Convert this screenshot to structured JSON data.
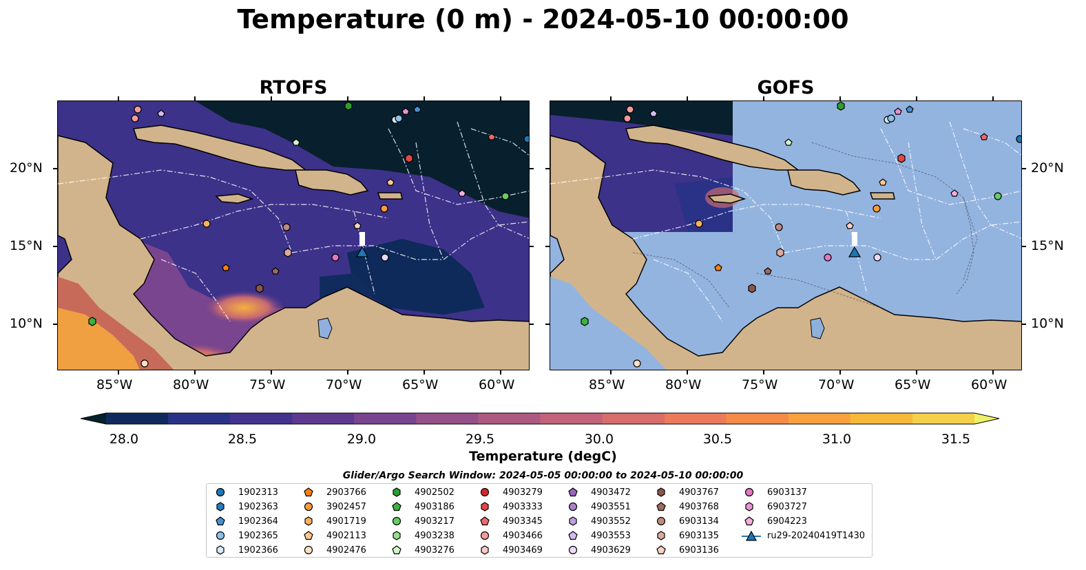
{
  "title": "Temperature (0 m) - 2024-05-10 00:00:00",
  "panels": [
    {
      "title": "RTOFS"
    },
    {
      "title": "GOFS"
    }
  ],
  "axes": {
    "lon_ticks": [
      "85°W",
      "80°W",
      "75°W",
      "70°W",
      "65°W",
      "60°W"
    ],
    "lat_ticks": [
      "20°N",
      "15°N",
      "10°N"
    ]
  },
  "map_colors": {
    "land": "#d2b48c",
    "ocean_gofs": "#94b4e0",
    "deep_cold": "#08202e",
    "mid": "#3b2f8a",
    "warm": "#a05a88",
    "hot": "#f0a040",
    "lake": "#8fb0dd",
    "boundary": "#ffffff"
  },
  "colorbar": {
    "ticks": [
      "28.0",
      "28.5",
      "29.0",
      "29.5",
      "30.0",
      "30.5",
      "31.0",
      "31.5"
    ],
    "label": "Temperature (degC)",
    "colors": [
      "#07202d",
      "#0f2b5e",
      "#2a3287",
      "#43338f",
      "#5d3a8f",
      "#7a458f",
      "#955089",
      "#ad5a83",
      "#c3627b",
      "#d86e6c",
      "#eb7b5b",
      "#f48c48",
      "#f8a13e",
      "#f7b93a",
      "#f4d14b",
      "#eef067"
    ]
  },
  "search_window": "Glider/Argo Search Window: 2024-05-05 00:00:00 to 2024-05-10 00:00:00",
  "legend": [
    {
      "label": "1902313",
      "marker": "circle",
      "color": "#1f77b4"
    },
    {
      "label": "1902363",
      "marker": "hexagon",
      "color": "#2a7cba"
    },
    {
      "label": "1902364",
      "marker": "pentagon",
      "color": "#4a90d0"
    },
    {
      "label": "1902365",
      "marker": "circle",
      "color": "#8ec0ea"
    },
    {
      "label": "1902366",
      "marker": "hexagon",
      "color": "#d6ecfb"
    },
    {
      "label": "2903766",
      "marker": "pentagon",
      "color": "#ff7f0e"
    },
    {
      "label": "3902457",
      "marker": "circle",
      "color": "#ff9a3c"
    },
    {
      "label": "4901719",
      "marker": "hexagon",
      "color": "#ffb060"
    },
    {
      "label": "4902113",
      "marker": "pentagon",
      "color": "#ffc88e"
    },
    {
      "label": "4902476",
      "marker": "circle",
      "color": "#ffe2c2"
    },
    {
      "label": "4902502",
      "marker": "hexagon",
      "color": "#2ca02c"
    },
    {
      "label": "4903186",
      "marker": "pentagon",
      "color": "#3cb43c"
    },
    {
      "label": "4903217",
      "marker": "circle",
      "color": "#66cc66"
    },
    {
      "label": "4903238",
      "marker": "hexagon",
      "color": "#98df8a"
    },
    {
      "label": "4903276",
      "marker": "pentagon",
      "color": "#d2f5c8"
    },
    {
      "label": "4903279",
      "marker": "circle",
      "color": "#d62728"
    },
    {
      "label": "4903333",
      "marker": "hexagon",
      "color": "#e04848"
    },
    {
      "label": "4903345",
      "marker": "pentagon",
      "color": "#ea6a6a"
    },
    {
      "label": "4903466",
      "marker": "circle",
      "color": "#f49a9a"
    },
    {
      "label": "4903469",
      "marker": "hexagon",
      "color": "#fcc8c8"
    },
    {
      "label": "4903472",
      "marker": "pentagon",
      "color": "#9467bd"
    },
    {
      "label": "4903551",
      "marker": "circle",
      "color": "#a882cc"
    },
    {
      "label": "4903552",
      "marker": "hexagon",
      "color": "#bea0dc"
    },
    {
      "label": "4903553",
      "marker": "pentagon",
      "color": "#d4bcec"
    },
    {
      "label": "4903629",
      "marker": "circle",
      "color": "#ead8f8"
    },
    {
      "label": "4903767",
      "marker": "hexagon",
      "color": "#8c564b"
    },
    {
      "label": "4903768",
      "marker": "pentagon",
      "color": "#a06a5e"
    },
    {
      "label": "6903134",
      "marker": "circle",
      "color": "#c08a7c"
    },
    {
      "label": "6903135",
      "marker": "hexagon",
      "color": "#dcaa9c"
    },
    {
      "label": "6903136",
      "marker": "pentagon",
      "color": "#f8d0c4"
    },
    {
      "label": "6903137",
      "marker": "circle",
      "color": "#e377c2"
    },
    {
      "label": "6903727",
      "marker": "hexagon",
      "color": "#ea92cf"
    },
    {
      "label": "6904223",
      "marker": "pentagon",
      "color": "#f2b0dc"
    },
    {
      "label": "ru29-20240419T1430",
      "marker": "triangle-line",
      "color": "#1f77b4"
    }
  ]
}
